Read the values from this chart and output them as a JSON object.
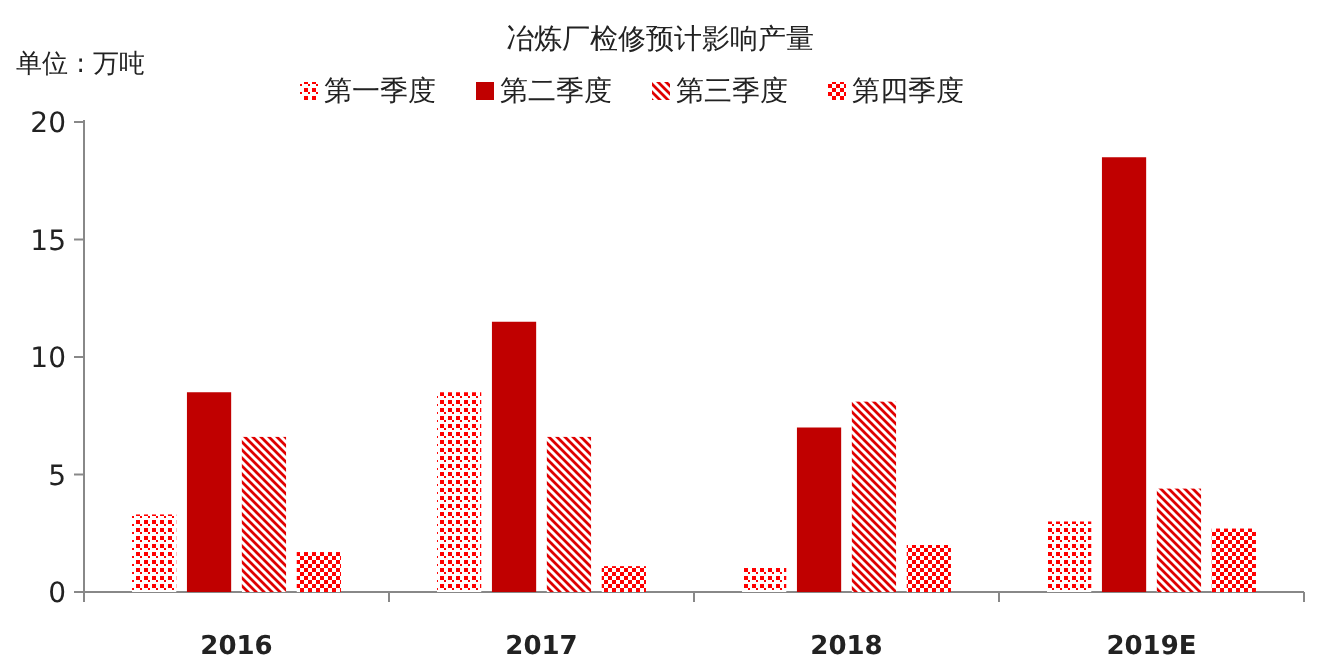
{
  "chart_data": {
    "type": "bar",
    "title": "冶炼厂检修预计影响产量",
    "ylabel": "单位 : 万吨",
    "categories": [
      "2016",
      "2017",
      "2018",
      "2019E"
    ],
    "series": [
      {
        "name": "第一季度",
        "color": "#ff0000",
        "values": [
          3.3,
          8.5,
          1.1,
          3.0
        ]
      },
      {
        "name": "第二季度",
        "color": "#c00000",
        "values": [
          8.5,
          11.5,
          7.0,
          18.5
        ]
      },
      {
        "name": "第三季度",
        "color": "#e00000",
        "values": [
          6.6,
          6.6,
          8.1,
          4.4
        ]
      },
      {
        "name": "第四季度",
        "color": "#ff0000",
        "values": [
          1.7,
          1.1,
          2.0,
          2.7
        ]
      }
    ],
    "ylim": [
      0,
      20
    ],
    "yticks": [
      0,
      5,
      10,
      15,
      20
    ],
    "grid": false,
    "legend": "top"
  }
}
